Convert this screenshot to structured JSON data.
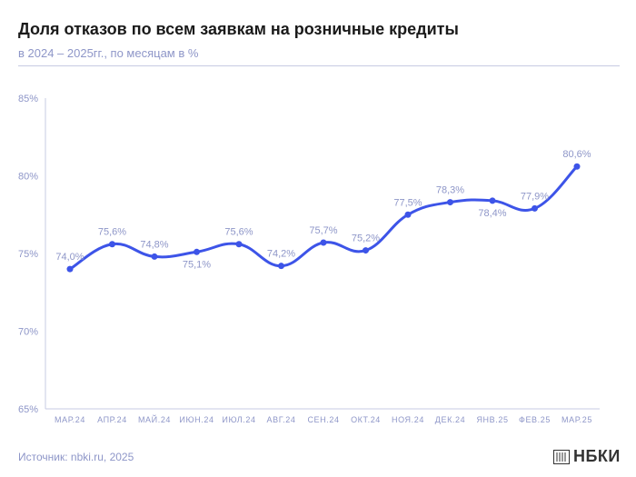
{
  "header": {
    "title": "Доля отказов по всем заявкам на розничные кредиты",
    "subtitle": "в 2024 – 2025гг., по месяцам в %"
  },
  "footer": {
    "source": "Источник: nbki.ru, 2025",
    "logo_text": "НБКИ"
  },
  "colors": {
    "line": "#3d54e8",
    "text": "#8e96c8",
    "axis": "#c7cbe3"
  },
  "chart_data": {
    "type": "line",
    "title": "Доля отказов по всем заявкам на розничные кредиты",
    "subtitle": "в 2024 – 2025гг., по месяцам в %",
    "categories": [
      "МАР.24",
      "АПР.24",
      "МАЙ.24",
      "ИЮН.24",
      "ИЮЛ.24",
      "АВГ.24",
      "СЕН.24",
      "ОКТ.24",
      "НОЯ.24",
      "ДЕК.24",
      "ЯНВ.25",
      "ФЕВ.25",
      "МАР.25"
    ],
    "values": [
      74.0,
      75.6,
      74.8,
      75.1,
      75.6,
      74.2,
      75.7,
      75.2,
      77.5,
      78.3,
      78.4,
      77.9,
      80.6
    ],
    "data_labels": [
      "74,0%",
      "75,6%",
      "74,8%",
      "75,1%",
      "75,6%",
      "74,2%",
      "75,7%",
      "75,2%",
      "77,5%",
      "78,3%",
      "78,4%",
      "77,9%",
      "80,6%"
    ],
    "label_position": [
      "above",
      "above",
      "above",
      "below",
      "above",
      "above",
      "above",
      "above",
      "above",
      "above",
      "below",
      "above",
      "above"
    ],
    "y_ticks": [
      65,
      70,
      75,
      80,
      85
    ],
    "y_tick_labels": [
      "65%",
      "70%",
      "75%",
      "80%",
      "85%"
    ],
    "ylim": [
      65,
      85
    ],
    "grid": false,
    "legend": "none"
  }
}
